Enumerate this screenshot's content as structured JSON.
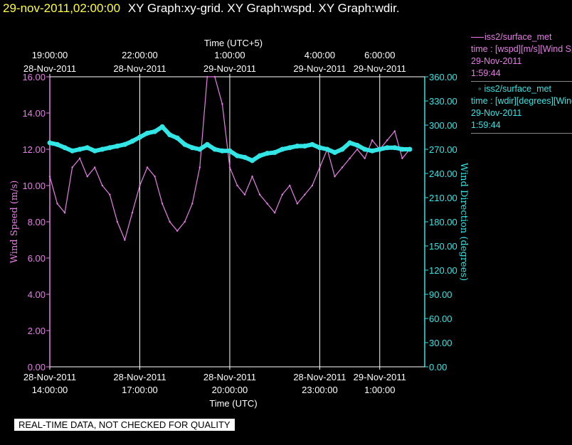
{
  "header": {
    "timestamp": "29-nov-2011,02:00:00",
    "titles": "XY Graph:xy-grid.  XY Graph:wspd.  XY Graph:wdir."
  },
  "legend": [
    {
      "name": "iss2/surface_met",
      "desc": "time : [wspd][m/s][Wind Speed]",
      "date": "29-Nov-2011",
      "time": "1:59:44"
    },
    {
      "name": "iss2/surface_met",
      "desc": "time : [wdir][degrees][Wind Direction]",
      "date": "29-Nov-2011",
      "time": "1:59:44"
    }
  ],
  "note": "REAL-TIME DATA, NOT CHECKED FOR QUALITY",
  "colors": {
    "wspd": "#e87de8",
    "wdir": "#33e6e6",
    "axis_left": "#e87de8",
    "axis_right": "#33e6e6",
    "grid": "#ffffff",
    "timestamp": "#ffff33"
  },
  "chart_data": {
    "type": "line",
    "x_unit": "hours since 28-Nov-2011 14:00:00 UTC",
    "xlim": [
      0,
      12.5
    ],
    "top_axis_title": "Time (UTC+5)",
    "top_ticks": [
      {
        "x": 0,
        "l1": "19:00:00",
        "l2": "28-Nov-2011"
      },
      {
        "x": 3,
        "l1": "22:00:00",
        "l2": "28-Nov-2011"
      },
      {
        "x": 6,
        "l1": "1:00:00",
        "l2": "29-Nov-2011"
      },
      {
        "x": 9,
        "l1": "4:00:00",
        "l2": "29-Nov-2011"
      },
      {
        "x": 11,
        "l1": "6:00:00",
        "l2": "29-Nov-2011"
      }
    ],
    "bottom_axis_title": "Time (UTC)",
    "bottom_ticks": [
      {
        "x": 0,
        "l1": "28-Nov-2011",
        "l2": "14:00:00"
      },
      {
        "x": 3,
        "l1": "28-Nov-2011",
        "l2": "17:00:00"
      },
      {
        "x": 6,
        "l1": "28-Nov-2011",
        "l2": "20:00:00"
      },
      {
        "x": 9,
        "l1": "28-Nov-2011",
        "l2": "23:00:00"
      },
      {
        "x": 11,
        "l1": "29-Nov-2011",
        "l2": "1:00:00"
      }
    ],
    "left_axis": {
      "label": "Wind Speed (m/s)",
      "min": 0,
      "max": 16,
      "ticks": [
        "0.00",
        "2.00",
        "4.00",
        "6.00",
        "8.00",
        "10.00",
        "12.00",
        "14.00",
        "16.00"
      ]
    },
    "right_axis": {
      "label": "Wind Direction (degrees)",
      "min": 0,
      "max": 360,
      "ticks": [
        "0.00",
        "30.00",
        "60.00",
        "90.00",
        "120.00",
        "150.00",
        "180.00",
        "210.00",
        "240.00",
        "270.00",
        "300.00",
        "330.00",
        "360.00"
      ]
    },
    "grid_x": [
      3,
      6,
      9,
      11
    ],
    "series": [
      {
        "name": "wspd",
        "axis": "left",
        "x": [
          0,
          0.25,
          0.5,
          0.75,
          1,
          1.25,
          1.5,
          1.75,
          2,
          2.25,
          2.5,
          2.75,
          3,
          3.25,
          3.5,
          3.75,
          4,
          4.25,
          4.5,
          4.75,
          5,
          5.25,
          5.5,
          5.75,
          6,
          6.25,
          6.5,
          6.75,
          7,
          7.25,
          7.5,
          7.75,
          8,
          8.25,
          8.5,
          8.75,
          9,
          9.25,
          9.5,
          9.75,
          10,
          10.25,
          10.5,
          10.75,
          11,
          11.25,
          11.5,
          11.75,
          12
        ],
        "values": [
          10.5,
          9.0,
          8.5,
          11.0,
          11.5,
          10.5,
          11.0,
          10.0,
          9.5,
          8.0,
          7.0,
          8.5,
          10.0,
          11.0,
          10.5,
          9.0,
          8.0,
          7.5,
          8.0,
          9.0,
          11.0,
          16.0,
          16.0,
          14.5,
          11.0,
          10.0,
          9.5,
          10.5,
          9.5,
          9.0,
          8.5,
          9.5,
          10.0,
          9.0,
          9.5,
          10.0,
          11.0,
          12.0,
          10.5,
          11.0,
          11.5,
          12.0,
          11.5,
          12.5,
          12.0,
          12.5,
          13.0,
          11.5,
          12.0
        ]
      },
      {
        "name": "wdir",
        "axis": "right",
        "x": [
          0,
          0.25,
          0.5,
          0.75,
          1,
          1.25,
          1.5,
          1.75,
          2,
          2.25,
          2.5,
          2.75,
          3,
          3.25,
          3.5,
          3.75,
          4,
          4.25,
          4.5,
          4.75,
          5,
          5.25,
          5.5,
          5.75,
          6,
          6.25,
          6.5,
          6.75,
          7,
          7.25,
          7.5,
          7.75,
          8,
          8.25,
          8.5,
          8.75,
          9,
          9.25,
          9.5,
          9.75,
          10,
          10.25,
          10.5,
          10.75,
          11,
          11.25,
          11.5,
          11.75,
          12
        ],
        "values": [
          278,
          276,
          272,
          268,
          270,
          272,
          268,
          270,
          272,
          274,
          276,
          280,
          285,
          290,
          292,
          298,
          288,
          284,
          276,
          272,
          270,
          276,
          270,
          268,
          268,
          262,
          260,
          256,
          262,
          265,
          266,
          270,
          272,
          274,
          274,
          276,
          272,
          270,
          266,
          270,
          278,
          275,
          270,
          268,
          270,
          272,
          272,
          270,
          270
        ]
      }
    ]
  }
}
